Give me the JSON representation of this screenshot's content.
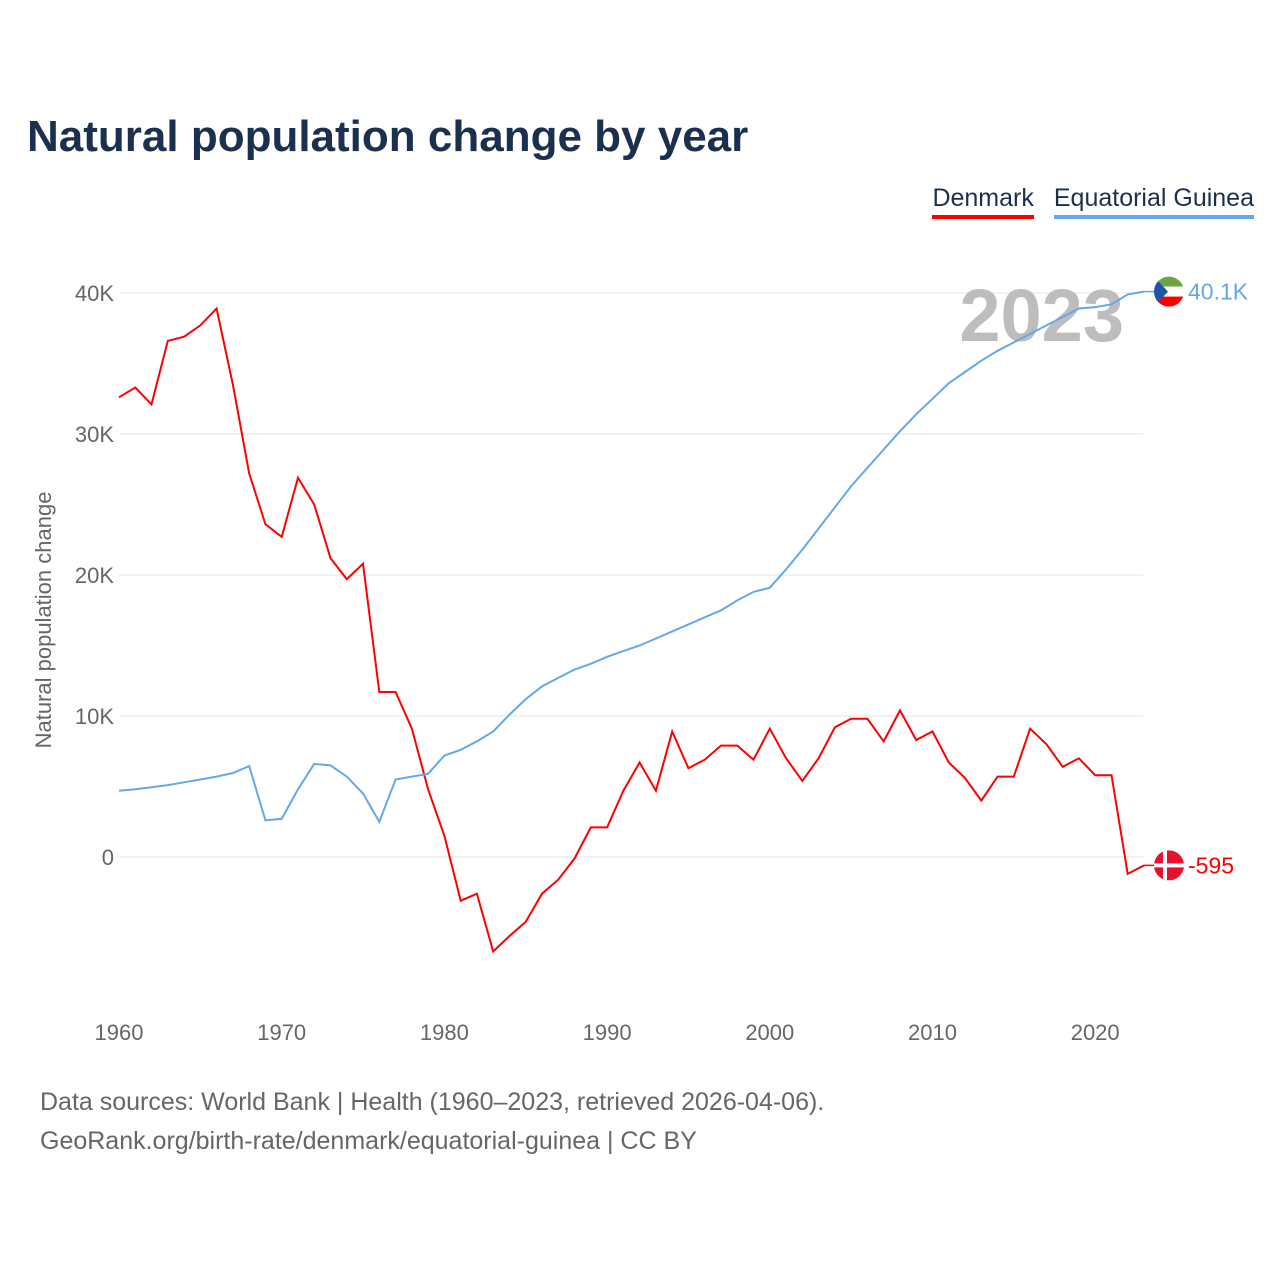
{
  "title": "Natural population change by year",
  "legend": [
    "Denmark",
    "Equatorial Guinea"
  ],
  "sources": [
    "Data sources: World Bank | Health (1960–2023, retrieved 2026-04-06).",
    "GeoRank.org/birth-rate/denmark/equatorial-guinea | CC BY"
  ],
  "chart_data": {
    "type": "line",
    "title": "Natural population change by year",
    "ylabel": "Natural population change",
    "xlabel": "",
    "xlim": [
      1960,
      2023
    ],
    "ylim": [
      -10000,
      42000
    ],
    "yticks": [
      0,
      10000,
      20000,
      30000,
      40000
    ],
    "ytick_labels": [
      "0",
      "10K",
      "20K",
      "30K",
      "40K"
    ],
    "xticks": [
      1960,
      1970,
      1980,
      1990,
      2000,
      2010,
      2020
    ],
    "year_label": "2023",
    "grid": true,
    "legend_position": "top-right",
    "series": [
      {
        "name": "Denmark",
        "color": "#ff0000",
        "end_label": "-595",
        "values": [
          32600,
          33300,
          32100,
          36600,
          36900,
          37700,
          38900,
          33500,
          27200,
          23600,
          22700,
          26900,
          25000,
          21200,
          19700,
          20800,
          11700,
          11700,
          9100,
          4800,
          1500,
          -3100,
          -2600,
          -6700,
          -5600,
          -4600,
          -2600,
          -1600,
          -100,
          2100,
          2100,
          4700,
          6700,
          4700,
          8900,
          6300,
          6900,
          7900,
          7900,
          6900,
          9100,
          7000,
          5400,
          7000,
          9200,
          9800,
          9800,
          8200,
          10400,
          8300,
          8900,
          6700,
          5600,
          4000,
          5700,
          5700,
          9100,
          8000,
          6400,
          7000,
          5800,
          5800,
          -1200,
          -595
        ]
      },
      {
        "name": "Equatorial Guinea",
        "color": "#64a8ea",
        "end_label": "40.1K",
        "values": [
          4700,
          4800,
          4950,
          5100,
          5300,
          5500,
          5700,
          5950,
          6450,
          2600,
          2700,
          4800,
          6600,
          6500,
          5700,
          4500,
          2500,
          5500,
          5700,
          5900,
          7200,
          7600,
          8200,
          8900,
          10100,
          11200,
          12100,
          12700,
          13300,
          13700,
          14200,
          14600,
          15000,
          15500,
          16000,
          16500,
          17000,
          17500,
          18200,
          18800,
          19100,
          20400,
          21800,
          23300,
          24800,
          26300,
          27600,
          28900,
          30200,
          31400,
          32500,
          33600,
          34400,
          35200,
          35900,
          36500,
          37100,
          37700,
          38300,
          38900,
          39000,
          39200,
          39900,
          40100
        ]
      }
    ]
  }
}
